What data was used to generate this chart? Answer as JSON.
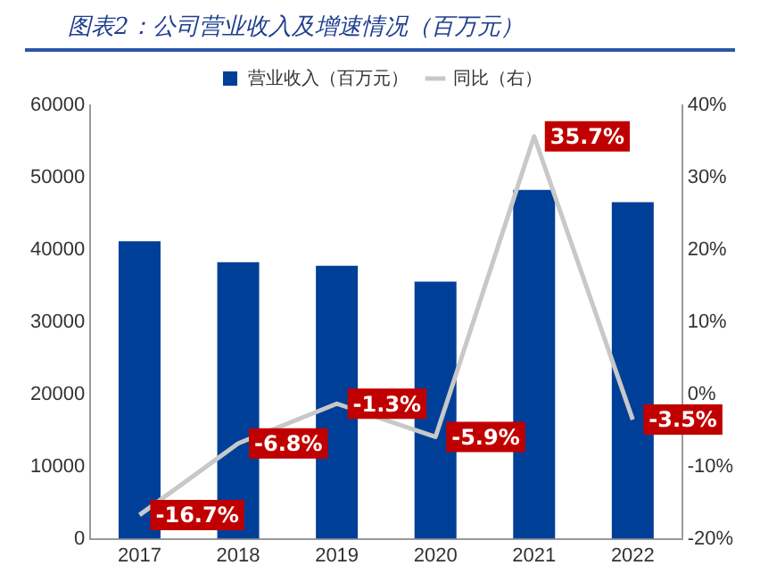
{
  "chart_data": {
    "type": "bar",
    "title": "图表2：公司营业收入及增速情况（百万元）",
    "categories": [
      "2017",
      "2018",
      "2019",
      "2020",
      "2021",
      "2022"
    ],
    "series": [
      {
        "name": "营业收入（百万元）",
        "color": "#003f98",
        "values": [
          41200,
          38300,
          37800,
          35600,
          48300,
          46600
        ]
      },
      {
        "name": "同比（右）",
        "type": "line",
        "axis": "y2",
        "color": "#c8c8c8",
        "values": [
          -16.7,
          -6.8,
          -1.3,
          -5.9,
          35.7,
          -3.5
        ],
        "value_labels": [
          "-16.7%",
          "-6.8%",
          "-1.3%",
          "-5.9%",
          "35.7%",
          "-3.5%"
        ]
      }
    ],
    "ylim": [
      0,
      60000
    ],
    "yticks": [
      0,
      10000,
      20000,
      30000,
      40000,
      50000,
      60000
    ],
    "y2lim": [
      -20,
      40
    ],
    "y2ticks": [
      {
        "value": -20,
        "label": "-20%"
      },
      {
        "value": -10,
        "label": "-10%"
      },
      {
        "value": 0,
        "label": "0%"
      },
      {
        "value": 10,
        "label": "10%"
      },
      {
        "value": 20,
        "label": "20%"
      },
      {
        "value": 30,
        "label": "30%"
      },
      {
        "value": 40,
        "label": "40%"
      }
    ],
    "grid": false,
    "legend": "top",
    "marker": "none"
  }
}
